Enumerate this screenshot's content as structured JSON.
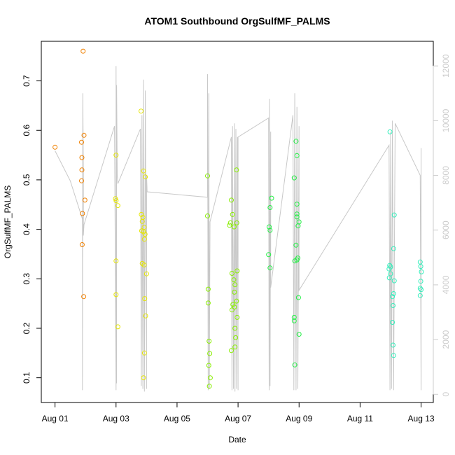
{
  "chart_data": {
    "type": "scatter",
    "title": "ATOM1 Southbound OrgSulfMF_PALMS",
    "xlabel": "Date",
    "ylabel": "OrgSulfMF_PALMS",
    "x_ticks": [
      "Aug 01",
      "Aug 03",
      "Aug 05",
      "Aug 07",
      "Aug 09",
      "Aug 11",
      "Aug 13"
    ],
    "x_tick_days": [
      1,
      3,
      5,
      7,
      9,
      11,
      13
    ],
    "xlim": [
      0.55,
      13.4
    ],
    "ylim": [
      0.05,
      0.78
    ],
    "y_ticks": [
      0.1,
      0.2,
      0.3,
      0.4,
      0.5,
      0.6,
      0.7
    ],
    "y2_ticks": [
      0,
      2000,
      4000,
      6000,
      8000,
      10000,
      12000
    ],
    "y2lim": [
      -300,
      12900
    ],
    "y2_label_color": "#cccccc",
    "line_color": "#c8c8c8",
    "grid": false,
    "series": [
      {
        "color": "#f08000",
        "points": [
          [
            1.0,
            0.566
          ],
          [
            1.87,
            0.576
          ],
          [
            1.88,
            0.545
          ],
          [
            1.88,
            0.52
          ],
          [
            1.87,
            0.498
          ],
          [
            1.9,
            0.432
          ],
          [
            1.89,
            0.369
          ],
          [
            1.94,
            0.264
          ],
          [
            1.95,
            0.59
          ],
          [
            1.92,
            0.76
          ],
          [
            1.98,
            0.459
          ]
        ]
      },
      {
        "color": "#e6e600",
        "points": [
          [
            3.0,
            0.55
          ],
          [
            2.98,
            0.462
          ],
          [
            3.0,
            0.458
          ],
          [
            3.06,
            0.448
          ],
          [
            3.0,
            0.336
          ],
          [
            3.0,
            0.268
          ],
          [
            3.06,
            0.203
          ],
          [
            3.82,
            0.639
          ],
          [
            3.9,
            0.518
          ],
          [
            3.96,
            0.506
          ],
          [
            3.83,
            0.43
          ],
          [
            3.88,
            0.424
          ],
          [
            3.86,
            0.416
          ],
          [
            3.92,
            0.404
          ],
          [
            3.84,
            0.397
          ],
          [
            3.9,
            0.395
          ],
          [
            3.95,
            0.39
          ],
          [
            3.93,
            0.38
          ],
          [
            3.86,
            0.331
          ],
          [
            3.92,
            0.328
          ],
          [
            4.0,
            0.31
          ],
          [
            3.94,
            0.26
          ],
          [
            3.97,
            0.225
          ],
          [
            3.93,
            0.15
          ],
          [
            3.9,
            0.1
          ]
        ]
      },
      {
        "color": "#88ee00",
        "points": [
          [
            6.0,
            0.508
          ],
          [
            6.0,
            0.427
          ],
          [
            6.02,
            0.279
          ],
          [
            6.02,
            0.251
          ],
          [
            6.05,
            0.174
          ],
          [
            6.07,
            0.149
          ],
          [
            6.04,
            0.125
          ],
          [
            6.09,
            0.1
          ],
          [
            6.06,
            0.083
          ],
          [
            6.95,
            0.52
          ],
          [
            6.78,
            0.459
          ],
          [
            6.82,
            0.43
          ],
          [
            6.75,
            0.413
          ],
          [
            6.72,
            0.408
          ],
          [
            6.96,
            0.413
          ],
          [
            6.87,
            0.405
          ],
          [
            6.97,
            0.316
          ],
          [
            6.8,
            0.311
          ],
          [
            6.86,
            0.298
          ],
          [
            6.9,
            0.288
          ],
          [
            6.88,
            0.273
          ],
          [
            6.95,
            0.255
          ],
          [
            6.83,
            0.248
          ],
          [
            6.88,
            0.243
          ],
          [
            6.8,
            0.237
          ],
          [
            6.97,
            0.222
          ],
          [
            6.9,
            0.2
          ],
          [
            6.92,
            0.181
          ],
          [
            6.9,
            0.162
          ],
          [
            6.78,
            0.155
          ]
        ]
      },
      {
        "color": "#22ee44",
        "points": [
          [
            8.1,
            0.463
          ],
          [
            8.05,
            0.444
          ],
          [
            8.02,
            0.405
          ],
          [
            8.05,
            0.398
          ],
          [
            8.0,
            0.349
          ],
          [
            8.05,
            0.322
          ],
          [
            8.9,
            0.578
          ],
          [
            8.93,
            0.549
          ],
          [
            8.84,
            0.504
          ],
          [
            8.93,
            0.451
          ],
          [
            8.93,
            0.431
          ],
          [
            8.93,
            0.425
          ],
          [
            9.0,
            0.415
          ],
          [
            8.97,
            0.407
          ],
          [
            8.9,
            0.368
          ],
          [
            8.96,
            0.342
          ],
          [
            8.93,
            0.338
          ],
          [
            8.86,
            0.336
          ],
          [
            8.98,
            0.262
          ],
          [
            8.84,
            0.222
          ],
          [
            8.84,
            0.215
          ],
          [
            9.0,
            0.188
          ],
          [
            8.86,
            0.126
          ]
        ]
      },
      {
        "color": "#33eebb",
        "points": [
          [
            11.98,
            0.597
          ],
          [
            12.12,
            0.429
          ],
          [
            12.1,
            0.361
          ],
          [
            11.97,
            0.327
          ],
          [
            12.0,
            0.324
          ],
          [
            11.95,
            0.32
          ],
          [
            12.0,
            0.31
          ],
          [
            11.96,
            0.302
          ],
          [
            12.12,
            0.296
          ],
          [
            12.1,
            0.27
          ],
          [
            12.06,
            0.264
          ],
          [
            12.08,
            0.246
          ],
          [
            12.06,
            0.212
          ],
          [
            12.08,
            0.166
          ],
          [
            12.1,
            0.145
          ],
          [
            12.97,
            0.334
          ],
          [
            12.99,
            0.325
          ],
          [
            13.01,
            0.314
          ],
          [
            12.99,
            0.295
          ],
          [
            12.97,
            0.281
          ],
          [
            13.0,
            0.278
          ],
          [
            12.97,
            0.266
          ]
        ]
      }
    ],
    "altitude_track": {
      "axis": "right",
      "points": [
        [
          1.0,
          8900
        ],
        [
          1.5,
          7800
        ],
        [
          1.9,
          6400
        ],
        [
          1.9,
          6000
        ],
        [
          1.9,
          150
        ],
        [
          1.91,
          11000
        ],
        [
          1.93,
          8000
        ],
        [
          1.93,
          5800
        ],
        [
          1.95,
          6200
        ],
        [
          2.95,
          9800
        ],
        [
          3.0,
          150
        ],
        [
          3.0,
          12000
        ],
        [
          3.02,
          400
        ],
        [
          3.02,
          11300
        ],
        [
          3.04,
          8000
        ],
        [
          3.06,
          7700
        ],
        [
          3.8,
          9700
        ],
        [
          3.83,
          300
        ],
        [
          3.85,
          10200
        ],
        [
          3.88,
          200
        ],
        [
          3.9,
          11500
        ],
        [
          3.93,
          100
        ],
        [
          3.96,
          11100
        ],
        [
          4.0,
          200
        ],
        [
          4.0,
          8000
        ],
        [
          4.02,
          7400
        ],
        [
          6.0,
          7200
        ],
        [
          6.0,
          11700
        ],
        [
          6.02,
          150
        ],
        [
          6.04,
          11000
        ],
        [
          6.06,
          200
        ],
        [
          6.08,
          6300
        ],
        [
          6.78,
          9400
        ],
        [
          6.8,
          150
        ],
        [
          6.82,
          9800
        ],
        [
          6.85,
          200
        ],
        [
          6.88,
          9900
        ],
        [
          6.9,
          100
        ],
        [
          6.93,
          9700
        ],
        [
          6.95,
          200
        ],
        [
          6.98,
          9400
        ],
        [
          7.0,
          150
        ],
        [
          7.0,
          9400
        ],
        [
          8.0,
          10100
        ],
        [
          8.02,
          150
        ],
        [
          8.03,
          10800
        ],
        [
          8.05,
          300
        ],
        [
          8.07,
          9600
        ],
        [
          8.07,
          3900
        ],
        [
          8.8,
          10200
        ],
        [
          8.83,
          150
        ],
        [
          8.86,
          11000
        ],
        [
          8.9,
          150
        ],
        [
          8.93,
          10500
        ],
        [
          8.96,
          200
        ],
        [
          9.0,
          9800
        ],
        [
          9.0,
          8000
        ],
        [
          9.0,
          3800
        ],
        [
          11.95,
          9100
        ],
        [
          11.98,
          150
        ],
        [
          12.0,
          9600
        ],
        [
          12.03,
          200
        ],
        [
          12.06,
          10000
        ],
        [
          12.1,
          150
        ],
        [
          12.15,
          9900
        ],
        [
          12.97,
          8000
        ],
        [
          13.0,
          150
        ],
        [
          13.0,
          9000
        ],
        [
          13.0,
          8900
        ]
      ]
    }
  }
}
